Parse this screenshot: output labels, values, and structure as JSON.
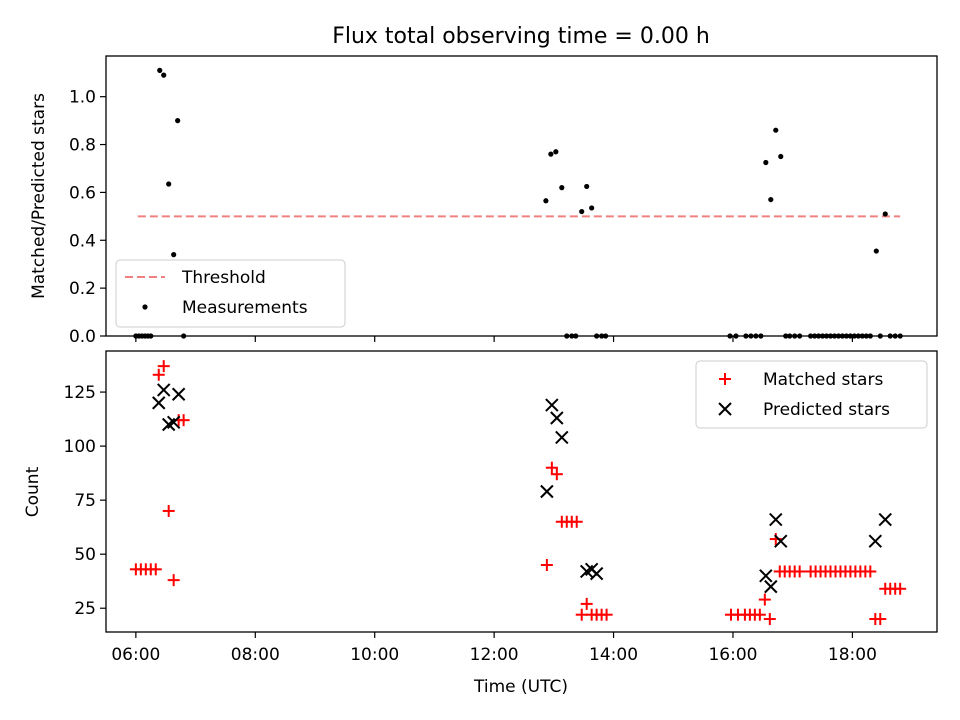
{
  "figure": {
    "title": "Flux total observing time = 0.00 h",
    "xlabel": "Time (UTC)"
  },
  "chart_data": [
    {
      "type": "scatter",
      "ylabel": "Matched/Predicted stars",
      "xlim": [
        "05:30",
        "19:25"
      ],
      "ylim": [
        0,
        1.17
      ],
      "yticks": [
        0.0,
        0.2,
        0.4,
        0.6,
        0.8,
        1.0
      ],
      "ytick_labels": [
        "0.0",
        "0.2",
        "0.4",
        "0.6",
        "0.8",
        "1.0"
      ],
      "legend_placement": "lower-left",
      "threshold": {
        "name": "Threshold",
        "value": 0.5,
        "x_range": [
          "06:02",
          "18:48"
        ],
        "color": "#f08080",
        "style": "dashed"
      },
      "series": [
        {
          "name": "Measurements",
          "color": "#000000",
          "marker": "dot",
          "points": [
            [
              "06:00",
              0
            ],
            [
              "06:03",
              0
            ],
            [
              "06:06",
              0
            ],
            [
              "06:09",
              0
            ],
            [
              "06:12",
              0
            ],
            [
              "06:15",
              0
            ],
            [
              "06:24",
              1.11
            ],
            [
              "06:28",
              1.09
            ],
            [
              "06:33",
              0.635
            ],
            [
              "06:38",
              0.34
            ],
            [
              "06:42",
              0.9
            ],
            [
              "06:48",
              0
            ],
            [
              "12:52",
              0.565
            ],
            [
              "12:57",
              0.76
            ],
            [
              "13:02",
              0.77
            ],
            [
              "13:08",
              0.62
            ],
            [
              "13:13",
              0
            ],
            [
              "13:18",
              0
            ],
            [
              "13:22",
              0
            ],
            [
              "13:28",
              0.52
            ],
            [
              "13:33",
              0.625
            ],
            [
              "13:38",
              0.535
            ],
            [
              "13:43",
              0
            ],
            [
              "13:48",
              0
            ],
            [
              "13:52",
              0
            ],
            [
              "15:57",
              0
            ],
            [
              "16:03",
              0
            ],
            [
              "16:13",
              0
            ],
            [
              "16:18",
              0
            ],
            [
              "16:23",
              0
            ],
            [
              "16:28",
              0
            ],
            [
              "16:33",
              0.725
            ],
            [
              "16:38",
              0.57
            ],
            [
              "16:43",
              0.86
            ],
            [
              "16:48",
              0.75
            ],
            [
              "16:53",
              0
            ],
            [
              "16:57",
              0
            ],
            [
              "17:02",
              0
            ],
            [
              "17:07",
              0
            ],
            [
              "17:18",
              0
            ],
            [
              "17:22",
              0
            ],
            [
              "17:26",
              0
            ],
            [
              "17:30",
              0
            ],
            [
              "17:34",
              0
            ],
            [
              "17:38",
              0
            ],
            [
              "17:42",
              0
            ],
            [
              "17:46",
              0
            ],
            [
              "17:50",
              0
            ],
            [
              "17:54",
              0
            ],
            [
              "17:58",
              0
            ],
            [
              "18:02",
              0
            ],
            [
              "18:06",
              0
            ],
            [
              "18:10",
              0
            ],
            [
              "18:14",
              0
            ],
            [
              "18:18",
              0
            ],
            [
              "18:24",
              0.355
            ],
            [
              "18:28",
              0
            ],
            [
              "18:33",
              0.51
            ],
            [
              "18:38",
              0
            ],
            [
              "18:43",
              0
            ],
            [
              "18:48",
              0
            ]
          ]
        }
      ]
    },
    {
      "type": "scatter",
      "ylabel": "Count",
      "xlim": [
        "05:30",
        "19:25"
      ],
      "ylim": [
        14,
        144
      ],
      "yticks": [
        25,
        50,
        75,
        100,
        125
      ],
      "ytick_labels": [
        "25",
        "50",
        "75",
        "100",
        "125"
      ],
      "xticks": [
        "06:00",
        "08:00",
        "10:00",
        "12:00",
        "14:00",
        "16:00",
        "18:00"
      ],
      "xtick_labels": [
        "06:00",
        "08:00",
        "10:00",
        "12:00",
        "14:00",
        "16:00",
        "18:00"
      ],
      "legend_placement": "upper-right",
      "series": [
        {
          "name": "Matched stars",
          "color": "#ff0000",
          "marker": "plus",
          "points": [
            [
              "06:00",
              43
            ],
            [
              "06:05",
              43
            ],
            [
              "06:10",
              43
            ],
            [
              "06:15",
              43
            ],
            [
              "06:20",
              43
            ],
            [
              "06:23",
              133
            ],
            [
              "06:28",
              137
            ],
            [
              "06:33",
              70
            ],
            [
              "06:38",
              38
            ],
            [
              "06:43",
              112
            ],
            [
              "06:48",
              112
            ],
            [
              "12:53",
              45
            ],
            [
              "12:58",
              90
            ],
            [
              "13:03",
              87
            ],
            [
              "13:08",
              65
            ],
            [
              "13:13",
              65
            ],
            [
              "13:18",
              65
            ],
            [
              "13:23",
              65
            ],
            [
              "13:28",
              22
            ],
            [
              "13:33",
              27
            ],
            [
              "13:38",
              22
            ],
            [
              "13:43",
              22
            ],
            [
              "13:48",
              22
            ],
            [
              "13:53",
              22
            ],
            [
              "15:58",
              22
            ],
            [
              "16:05",
              22
            ],
            [
              "16:12",
              22
            ],
            [
              "16:17",
              22
            ],
            [
              "16:22",
              22
            ],
            [
              "16:27",
              22
            ],
            [
              "16:32",
              29
            ],
            [
              "16:37",
              20
            ],
            [
              "16:43",
              57
            ],
            [
              "16:47",
              42
            ],
            [
              "16:52",
              42
            ],
            [
              "16:57",
              42
            ],
            [
              "17:02",
              42
            ],
            [
              "17:07",
              42
            ],
            [
              "17:18",
              42
            ],
            [
              "17:23",
              42
            ],
            [
              "17:28",
              42
            ],
            [
              "17:33",
              42
            ],
            [
              "17:38",
              42
            ],
            [
              "17:43",
              42
            ],
            [
              "17:48",
              42
            ],
            [
              "17:53",
              42
            ],
            [
              "17:58",
              42
            ],
            [
              "18:03",
              42
            ],
            [
              "18:08",
              42
            ],
            [
              "18:13",
              42
            ],
            [
              "18:18",
              42
            ],
            [
              "18:23",
              20
            ],
            [
              "18:28",
              20
            ],
            [
              "18:33",
              34
            ],
            [
              "18:38",
              34
            ],
            [
              "18:43",
              34
            ],
            [
              "18:48",
              34
            ]
          ]
        },
        {
          "name": "Predicted stars",
          "color": "#000000",
          "marker": "x",
          "points": [
            [
              "06:23",
              120
            ],
            [
              "06:28",
              126
            ],
            [
              "06:33",
              110
            ],
            [
              "06:38",
              111
            ],
            [
              "06:43",
              124
            ],
            [
              "12:53",
              79
            ],
            [
              "12:58",
              119
            ],
            [
              "13:03",
              113
            ],
            [
              "13:08",
              104
            ],
            [
              "13:33",
              42
            ],
            [
              "13:38",
              43
            ],
            [
              "13:43",
              41
            ],
            [
              "16:33",
              40
            ],
            [
              "16:38",
              35
            ],
            [
              "16:43",
              66
            ],
            [
              "16:48",
              56
            ],
            [
              "18:23",
              56
            ],
            [
              "18:33",
              66
            ]
          ]
        }
      ]
    }
  ]
}
